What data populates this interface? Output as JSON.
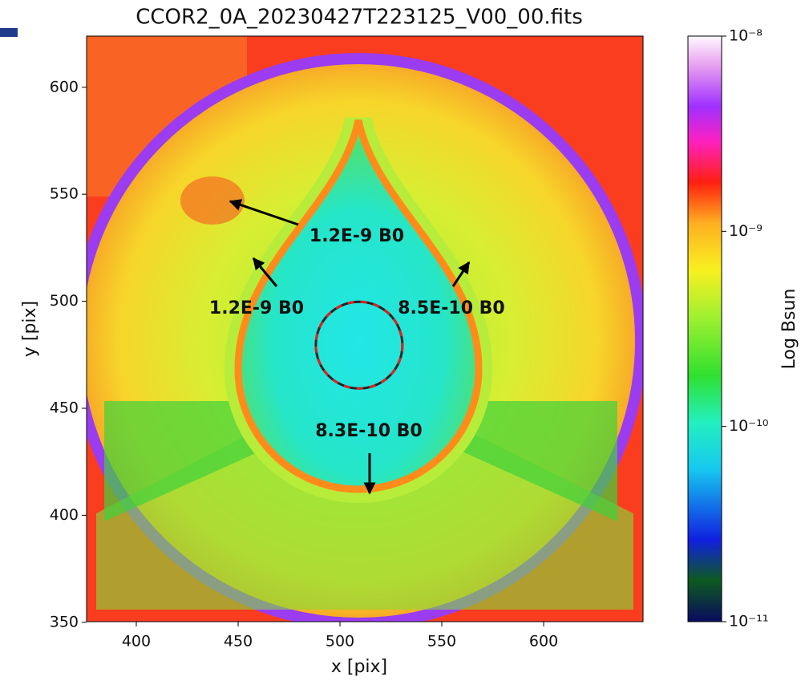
{
  "chart_data": {
    "type": "image",
    "title": "CCOR2_0A_20230427T223125_V00_00.fits",
    "xlabel": "x [pix]",
    "ylabel": "y [pix]",
    "xlim": [
      375.6,
      648.8
    ],
    "xticks": [
      400,
      450,
      500,
      550,
      600
    ],
    "ylim": [
      350.3,
      623.9
    ],
    "yticks": [
      350,
      400,
      450,
      500,
      550,
      600
    ],
    "colorbar": {
      "label": "Log Bsun",
      "log": true,
      "lim": [
        1e-11,
        1e-08
      ],
      "ticks": [
        {
          "value": 1e-08,
          "label": "10⁻⁸"
        },
        {
          "value": 1e-09,
          "label": "10⁻⁹"
        },
        {
          "value": 1e-10,
          "label": "10⁻¹⁰"
        },
        {
          "value": 1e-11,
          "label": "10⁻¹¹"
        }
      ]
    },
    "annotations": [
      "1.2E-9 B0",
      "1.2E-9 B0",
      "8.5E-10 B0",
      "8.3E-10 B0"
    ]
  }
}
